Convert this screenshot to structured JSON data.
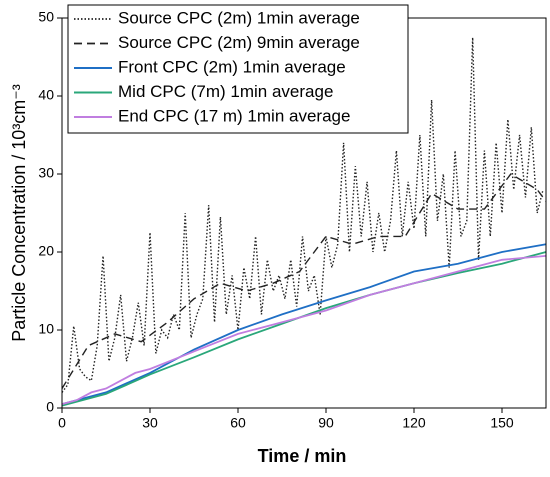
{
  "chart_data": {
    "type": "line",
    "xlabel": "Time / min",
    "ylabel": "Particle Concentration / 10³cm⁻³",
    "xlim": [
      0,
      165
    ],
    "ylim": [
      0,
      50
    ],
    "xticks": [
      0,
      30,
      60,
      90,
      120,
      150
    ],
    "yticks": [
      0,
      10,
      20,
      30,
      40,
      50
    ],
    "legend": "upper left",
    "series": [
      {
        "name": "Source CPC (2m) 1min average",
        "color": "#222222",
        "style": "dotted",
        "x": [
          0,
          2,
          4,
          6,
          8,
          10,
          12,
          14,
          16,
          18,
          20,
          22,
          24,
          26,
          28,
          30,
          32,
          34,
          36,
          38,
          40,
          42,
          44,
          46,
          48,
          50,
          52,
          54,
          56,
          58,
          60,
          62,
          64,
          66,
          68,
          70,
          72,
          74,
          76,
          78,
          80,
          82,
          84,
          86,
          88,
          90,
          92,
          94,
          96,
          98,
          100,
          102,
          104,
          106,
          108,
          110,
          112,
          114,
          116,
          118,
          120,
          122,
          124,
          126,
          128,
          130,
          132,
          134,
          136,
          138,
          140,
          142,
          144,
          146,
          148,
          150,
          152,
          154,
          156,
          158,
          160,
          162,
          164
        ],
        "values": [
          2,
          3,
          10.5,
          5,
          4,
          3.5,
          8,
          19.5,
          6,
          9,
          14.5,
          6,
          9,
          13.5,
          8,
          22.5,
          7,
          10,
          9,
          12,
          10,
          25,
          9,
          12,
          14,
          26,
          11,
          24.5,
          12,
          17,
          10,
          18,
          14,
          22,
          12,
          19,
          15,
          17,
          14,
          19,
          13,
          22,
          15,
          17,
          12,
          22,
          18,
          21,
          34,
          20,
          31,
          22,
          29,
          20,
          25,
          20,
          24,
          33,
          22,
          29,
          23,
          35,
          22,
          39.5,
          24,
          30,
          18,
          33,
          22,
          24,
          47.5,
          19,
          33,
          22,
          34,
          25,
          37,
          28,
          35,
          27,
          36,
          25,
          28
        ]
      },
      {
        "name": "Source CPC (2m) 9min average",
        "color": "#222222",
        "style": "dashed",
        "x": [
          0,
          9,
          18,
          27,
          36,
          45,
          54,
          63,
          72,
          81,
          90,
          99,
          108,
          117,
          126,
          135,
          144,
          153,
          162,
          165
        ],
        "values": [
          2.5,
          8,
          9.5,
          8.5,
          11,
          14,
          16,
          15,
          16,
          17.5,
          22,
          21,
          22,
          22,
          27.5,
          25.5,
          25.5,
          30,
          28,
          26.5
        ]
      },
      {
        "name": "Front CPC (2m) 1min average",
        "color": "#1f6fc5",
        "style": "solid",
        "x": [
          0,
          15,
          30,
          45,
          60,
          75,
          90,
          105,
          120,
          135,
          150,
          165
        ],
        "values": [
          0.5,
          2,
          4.5,
          7.5,
          10,
          12,
          13.8,
          15.5,
          17.5,
          18.5,
          20,
          21
        ]
      },
      {
        "name": "Mid CPC (7m) 1min average",
        "color": "#2aa77a",
        "style": "solid",
        "x": [
          0,
          15,
          30,
          45,
          60,
          75,
          90,
          105,
          120,
          135,
          150,
          165
        ],
        "values": [
          0.3,
          1.8,
          4.3,
          6.5,
          8.8,
          10.8,
          12.8,
          14.5,
          16,
          17.3,
          18.5,
          20
        ]
      },
      {
        "name": "End CPC (17 m) 1min average",
        "color": "#c07ee0",
        "style": "solid",
        "x": [
          0,
          5,
          10,
          15,
          20,
          25,
          30,
          40,
          50,
          60,
          75,
          90,
          105,
          120,
          135,
          150,
          165
        ],
        "values": [
          0.5,
          1,
          2,
          2.5,
          3.5,
          4.5,
          5,
          6.5,
          8,
          9.5,
          11,
          12.5,
          14.5,
          16,
          17.5,
          19,
          19.5
        ]
      }
    ]
  }
}
